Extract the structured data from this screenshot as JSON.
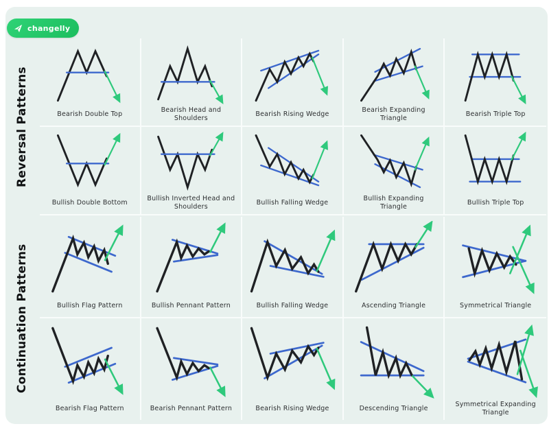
{
  "logo": {
    "text": "changelly",
    "icon": "rocket-icon",
    "badge_color": "#25c765"
  },
  "colors": {
    "page_bg": "#ffffff",
    "panel_bg": "#e8f1ee",
    "pattern_line": "#1f2124",
    "trend_line": "#3d68cd",
    "arrow": "#2fc97c",
    "label_text": "#2c2e30",
    "section_text": "#101213"
  },
  "sections": [
    {
      "label": "Reversal Patterns",
      "rows": [
        [
          {
            "label": "Bearish Double Top",
            "diagram": "bearish-double-top"
          },
          {
            "label": "Bearish Head and Shoulders",
            "diagram": "bearish-head-and-shoulders"
          },
          {
            "label": "Bearish Rising Wedge",
            "diagram": "bearish-rising-wedge"
          },
          {
            "label": "Bearish Expanding Triangle",
            "diagram": "bearish-expanding-triangle"
          },
          {
            "label": "Bearish Triple Top",
            "diagram": "bearish-triple-top"
          }
        ],
        [
          {
            "label": "Bullish Double Bottom",
            "diagram": "bullish-double-bottom"
          },
          {
            "label": "Bullish Inverted Head and Shoulders",
            "diagram": "bullish-inverted-head-and-shoulders"
          },
          {
            "label": "Bullish Falling Wedge",
            "diagram": "bullish-falling-wedge"
          },
          {
            "label": "Bullish Expanding Triangle",
            "diagram": "bullish-expanding-triangle"
          },
          {
            "label": "Bullish Triple Top",
            "diagram": "bullish-triple-top"
          }
        ]
      ]
    },
    {
      "label": "Continuation Patterns",
      "rows": [
        [
          {
            "label": "Bullish Flag Pattern",
            "diagram": "bullish-flag"
          },
          {
            "label": "Bullish Pennant Pattern",
            "diagram": "bullish-pennant"
          },
          {
            "label": "Bullish Falling Wedge",
            "diagram": "bullish-falling-wedge-cont"
          },
          {
            "label": "Ascending Triangle",
            "diagram": "ascending-triangle"
          },
          {
            "label": "Symmetrical Triangle",
            "diagram": "symmetrical-triangle"
          }
        ],
        [
          {
            "label": "Bearish Flag Pattern",
            "diagram": "bearish-flag"
          },
          {
            "label": "Bearish Pennant Pattern",
            "diagram": "bearish-pennant"
          },
          {
            "label": "Bearish Rising Wedge",
            "diagram": "bearish-rising-wedge-cont"
          },
          {
            "label": "Descending Triangle",
            "diagram": "descending-triangle"
          },
          {
            "label": "Symmetrical Expanding Triangle",
            "diagram": "symmetrical-expanding-triangle"
          }
        ]
      ]
    }
  ]
}
